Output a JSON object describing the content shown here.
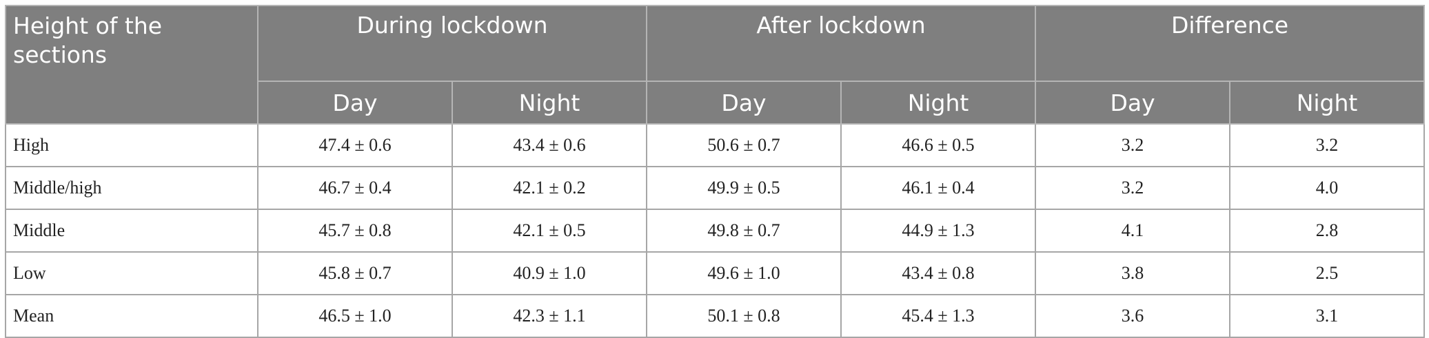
{
  "table": {
    "header": {
      "row_label": "Height of the sections",
      "groups": [
        "During lockdown",
        "After lockdown",
        "Difference"
      ],
      "subheaders": [
        "Day",
        "Night",
        "Day",
        "Night",
        "Day",
        "Night"
      ]
    },
    "rows": [
      [
        "High",
        "47.4 ± 0.6",
        "43.4 ± 0.6",
        "50.6 ± 0.7",
        "46.6 ± 0.5",
        "3.2",
        "3.2"
      ],
      [
        "Middle/high",
        "46.7 ± 0.4",
        "42.1 ± 0.2",
        "49.9 ± 0.5",
        "46.1 ± 0.4",
        "3.2",
        "4.0"
      ],
      [
        "Middle",
        "45.7 ± 0.8",
        "42.1 ± 0.5",
        "49.8 ± 0.7",
        "44.9 ± 1.3",
        "4.1",
        "2.8"
      ],
      [
        "Low",
        "45.8 ± 0.7",
        "40.9 ± 1.0",
        "49.6 ± 1.0",
        "43.4 ± 0.8",
        "3.8",
        "2.5"
      ],
      [
        "Mean",
        "46.5 ± 1.0",
        "42.3 ± 1.1",
        "50.1 ± 0.8",
        "45.4 ± 1.3",
        "3.6",
        "3.1"
      ]
    ]
  }
}
